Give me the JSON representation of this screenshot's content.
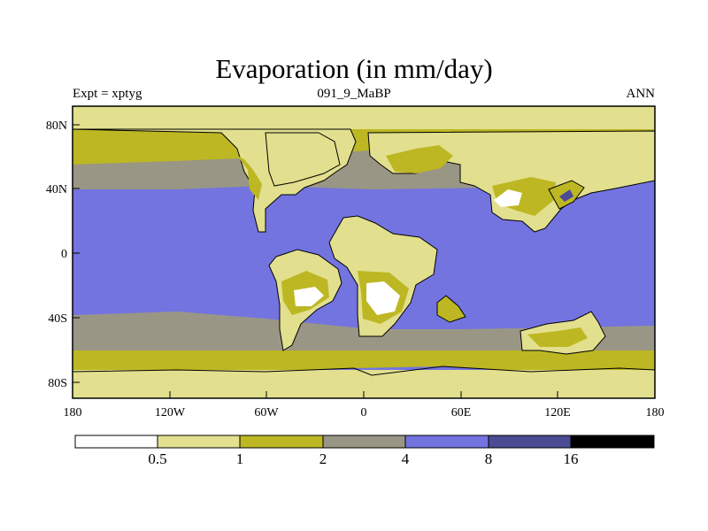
{
  "title": "Evaporation (in mm/day)",
  "left_label": "Expt = xptyg",
  "center_label": "091_9_MaBP",
  "right_label": "ANN",
  "map": {
    "lon_ticks": [
      "180",
      "120W",
      "60W",
      "0",
      "60E",
      "120E",
      "180"
    ],
    "lat_ticks": [
      "80N",
      "40N",
      "0",
      "40S",
      "80S"
    ]
  },
  "colorbar": {
    "levels": [
      "0.5",
      "1",
      "2",
      "4",
      "8",
      "16"
    ],
    "colors": [
      "#ffffff",
      "#e2df8e",
      "#bdb723",
      "#9a9685",
      "#7374e0",
      "#4b4b94",
      "#000000"
    ]
  },
  "colors": {
    "very_low": "#ffffff",
    "low": "#e2df8e",
    "mid_low": "#bdb723",
    "mid": "#9a9685",
    "high": "#7374e0",
    "very_high": "#4b4b94"
  }
}
